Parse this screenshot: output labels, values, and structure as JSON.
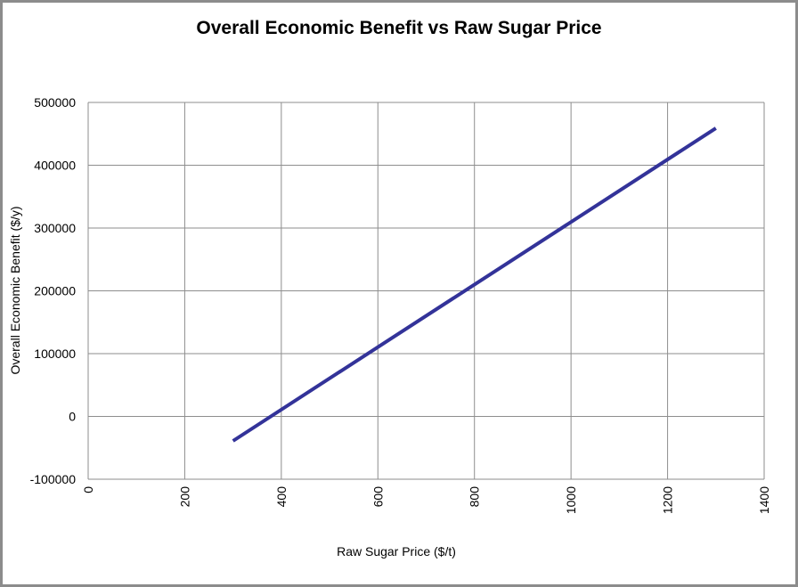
{
  "chart_data": {
    "type": "line",
    "title": "Overall Economic Benefit vs Raw Sugar Price",
    "xlabel": "Raw Sugar Price ($/t)",
    "ylabel": "Overall Economic Benefit ($/y)",
    "xlim": [
      0,
      1400
    ],
    "ylim": [
      -100000,
      500000
    ],
    "x_ticks": [
      "0",
      "200",
      "400",
      "600",
      "800",
      "1000",
      "1200",
      "1400"
    ],
    "y_ticks": [
      "500000",
      "400000",
      "300000",
      "200000",
      "100000",
      "0",
      "-100000"
    ],
    "grid": true,
    "legend": "none",
    "series": [
      {
        "color": "#333399",
        "x": [
          300,
          1300
        ],
        "y": [
          -39000,
          459000
        ]
      }
    ]
  }
}
